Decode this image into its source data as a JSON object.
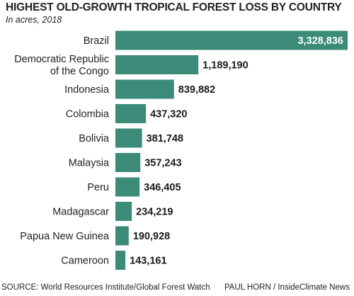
{
  "chart_data": {
    "type": "bar",
    "orientation": "horizontal",
    "title": "HIGHEST OLD-GROWTH TROPICAL FOREST LOSS BY COUNTRY",
    "subtitle": "In acres, 2018",
    "categories": [
      [
        "Brazil"
      ],
      [
        "Democratic Republic",
        "of the Congo"
      ],
      [
        "Indonesia"
      ],
      [
        "Colombia"
      ],
      [
        "Bolivia"
      ],
      [
        "Malaysia"
      ],
      [
        "Peru"
      ],
      [
        "Madagascar"
      ],
      [
        "Papua New Guinea"
      ],
      [
        "Cameroon"
      ]
    ],
    "values": [
      3328836,
      1189190,
      839882,
      437320,
      381748,
      357243,
      346405,
      234219,
      190928,
      143161
    ],
    "value_labels": [
      "3,328,836",
      "1,189,190",
      "839,882",
      "437,320",
      "381,748",
      "357,243",
      "346,405",
      "234,219",
      "190,928",
      "143,161"
    ],
    "bar_color": "#3b8b78",
    "xlabel": "",
    "ylabel": ""
  },
  "footer": {
    "source": "SOURCE: World Resources Institute/Global Forest Watch",
    "credit": "PAUL HORN / InsideClimate News"
  }
}
